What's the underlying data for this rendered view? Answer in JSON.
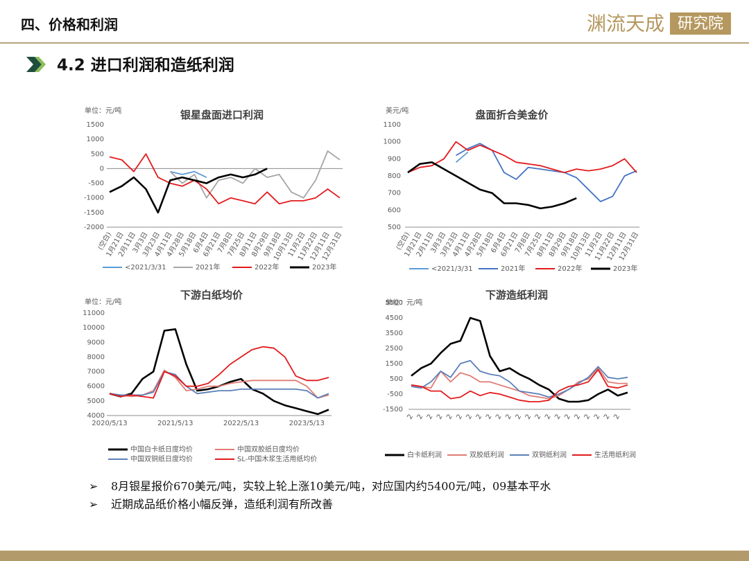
{
  "header": {
    "title": "四、价格和利润",
    "logo": "渊流天成",
    "logo_box": "研究院"
  },
  "section": {
    "title": "4.2 进口利润和造纸利润"
  },
  "chart_data": [
    {
      "type": "line",
      "title": "银星盘面进口利润",
      "ylabel": "单位：元/吨",
      "categories": [
        "(空白)",
        "1月21日",
        "2月11日",
        "3月3日",
        "3月23日",
        "4月11日",
        "4月28日",
        "5月18日",
        "6月4日",
        "6月21日",
        "7月8日",
        "7月25日",
        "8月11日",
        "8月29日",
        "9月18日",
        "10月13日",
        "11月2日",
        "11月22日",
        "12月11日",
        "12月31日"
      ],
      "series": [
        {
          "name": "<2021/3/31",
          "color": "#5b9bd5",
          "values": [
            null,
            null,
            null,
            null,
            null,
            -100,
            -200,
            -100,
            -300,
            null,
            null,
            null,
            null,
            null,
            null,
            null,
            null,
            null,
            null,
            null
          ]
        },
        {
          "name": "2021年",
          "color": "#a5a5a5",
          "values": [
            null,
            null,
            null,
            null,
            null,
            -100,
            -500,
            -200,
            -1000,
            -400,
            -300,
            -500,
            0,
            -300,
            -200,
            -800,
            -1000,
            -400,
            600,
            300
          ]
        },
        {
          "name": "2022年",
          "color": "#e41a1c",
          "values": [
            400,
            300,
            -100,
            500,
            -300,
            -500,
            -600,
            -400,
            -700,
            -1200,
            -1000,
            -1100,
            -1200,
            -800,
            -1200,
            -1100,
            -1100,
            -1000,
            -700,
            -1000
          ]
        },
        {
          "name": "2023年",
          "color": "#000000",
          "values": [
            -800,
            -600,
            -300,
            -700,
            -1500,
            -400,
            -300,
            -400,
            -500,
            -300,
            -200,
            -300,
            -200,
            0,
            null,
            null,
            null,
            null,
            null,
            null
          ]
        }
      ],
      "ylim": [
        -2000,
        1500
      ],
      "yticks": [
        1500,
        1000,
        500,
        0,
        -500,
        -1000,
        -1500,
        -2000
      ]
    },
    {
      "type": "line",
      "title": "盘面折合美金价",
      "ylabel": "美元/吨",
      "categories": [
        "(空白)",
        "1月21日",
        "2月11日",
        "3月3日",
        "3月23日",
        "4月11日",
        "4月28日",
        "5月18日",
        "6月4日",
        "6月21日",
        "7月8日",
        "7月25日",
        "8月11日",
        "8月29日",
        "9月18日",
        "10月13日",
        "11月2日",
        "11月22日",
        "12月11日",
        "12月31日"
      ],
      "series": [
        {
          "name": "<2021/3/31",
          "color": "#5b9bd5",
          "values": [
            null,
            null,
            null,
            null,
            880,
            940,
            null,
            null,
            null,
            null,
            null,
            null,
            null,
            null,
            null,
            null,
            null,
            null,
            null,
            null
          ]
        },
        {
          "name": "2021年",
          "color": "#4472c4",
          "values": [
            null,
            null,
            null,
            null,
            920,
            960,
            990,
            950,
            820,
            780,
            850,
            840,
            830,
            820,
            790,
            720,
            650,
            680,
            800,
            830
          ]
        },
        {
          "name": "2022年",
          "color": "#e41a1c",
          "values": [
            820,
            850,
            860,
            900,
            1000,
            950,
            980,
            950,
            920,
            880,
            870,
            860,
            840,
            820,
            840,
            830,
            840,
            860,
            900,
            820
          ]
        },
        {
          "name": "2023年",
          "color": "#000000",
          "values": [
            820,
            870,
            880,
            840,
            800,
            760,
            720,
            700,
            640,
            640,
            630,
            610,
            620,
            640,
            670,
            null,
            null,
            null,
            null,
            null
          ]
        }
      ],
      "ylim": [
        500,
        1100
      ],
      "yticks": [
        1100,
        1000,
        900,
        800,
        700,
        600,
        500
      ]
    },
    {
      "type": "line",
      "title": "下游白纸均价",
      "ylabel": "单位：元/吨",
      "categories": [
        "2020/5/13",
        null,
        null,
        null,
        null,
        null,
        "2021/5/13",
        null,
        null,
        null,
        null,
        null,
        "2022/5/13",
        null,
        null,
        null,
        null,
        null,
        "2023/5/13",
        null,
        null
      ],
      "series": [
        {
          "name": "中国白卡纸日度均价",
          "color": "#000000",
          "values": [
            5500,
            5300,
            5500,
            6500,
            7000,
            9800,
            9900,
            7500,
            5700,
            5800,
            6000,
            6300,
            6500,
            5800,
            5500,
            5000,
            4700,
            4500,
            4300,
            4100,
            4400
          ]
        },
        {
          "name": "中国双胶纸日度均价",
          "color": "#e07b73",
          "values": [
            5500,
            5400,
            5300,
            5400,
            5700,
            7100,
            6600,
            5700,
            5800,
            6000,
            6000,
            6200,
            6300,
            6400,
            6400,
            6400,
            6400,
            6400,
            6000,
            5200,
            5400
          ]
        },
        {
          "name": "中国双铜纸日度均价",
          "color": "#5b7fb8",
          "values": [
            5500,
            5400,
            5400,
            5400,
            5600,
            7000,
            6800,
            6000,
            5500,
            5600,
            5700,
            5700,
            5800,
            5800,
            5800,
            5800,
            5800,
            5800,
            5700,
            5200,
            5500
          ]
        },
        {
          "name": "SL-中国木浆生活用纸均价",
          "color": "#e31a1c",
          "values": [
            5500,
            5300,
            5400,
            5300,
            5200,
            7000,
            6700,
            6000,
            6000,
            6200,
            6800,
            7500,
            8000,
            8500,
            8700,
            8600,
            8000,
            6700,
            6400,
            6400,
            6600
          ]
        }
      ],
      "ylim": [
        4000,
        11000
      ],
      "yticks": [
        11000,
        10000,
        9000,
        8000,
        7000,
        6000,
        5000,
        4000
      ]
    },
    {
      "type": "line",
      "title": "下游造纸利润",
      "ylabel": "单位：元/吨",
      "categories": [
        "2",
        "2",
        "2",
        "2",
        "2",
        "2",
        "2",
        "2",
        "2",
        "2",
        "2",
        "2",
        "2",
        "2",
        "2",
        "2",
        "2",
        "2",
        "2",
        "2",
        "2",
        "2",
        null
      ],
      "series": [
        {
          "name": "白卡纸利润",
          "color": "#000000",
          "values": [
            700,
            1200,
            1500,
            2200,
            2800,
            3000,
            4500,
            4300,
            2000,
            1000,
            1200,
            800,
            500,
            100,
            -200,
            -800,
            -1000,
            -1000,
            -900,
            -500,
            -200,
            -600,
            -400
          ]
        },
        {
          "name": "双胶纸利润",
          "color": "#e07b73",
          "values": [
            0,
            0,
            -100,
            1000,
            300,
            900,
            700,
            300,
            300,
            100,
            -100,
            -300,
            -600,
            -700,
            -800,
            -600,
            -200,
            300,
            500,
            1200,
            300,
            200,
            200
          ]
        },
        {
          "name": "双铜纸利润",
          "color": "#5b7fb8",
          "values": [
            0,
            -100,
            300,
            1000,
            600,
            1500,
            1700,
            1000,
            800,
            700,
            300,
            -300,
            -400,
            -500,
            -700,
            -500,
            -200,
            200,
            600,
            1300,
            600,
            500,
            600
          ]
        },
        {
          "name": "生活用纸利润",
          "color": "#e31a1c",
          "values": [
            100,
            0,
            -300,
            -300,
            -800,
            -700,
            -300,
            -600,
            -400,
            -500,
            -700,
            -900,
            -1000,
            -1000,
            -900,
            -300,
            0,
            100,
            300,
            1100,
            0,
            -100,
            100
          ]
        }
      ],
      "ylim": [
        -1500,
        5500
      ],
      "yticks": [
        5500,
        4500,
        3500,
        2500,
        1500,
        500,
        -500,
        -1500
      ]
    }
  ],
  "bullets": [
    "8月银星报价670美元/吨，实较上轮上涨10美元/吨，对应国内约5400元/吨，09基本平水",
    "近期成品纸价格小幅反弹，造纸利润有所改善"
  ]
}
